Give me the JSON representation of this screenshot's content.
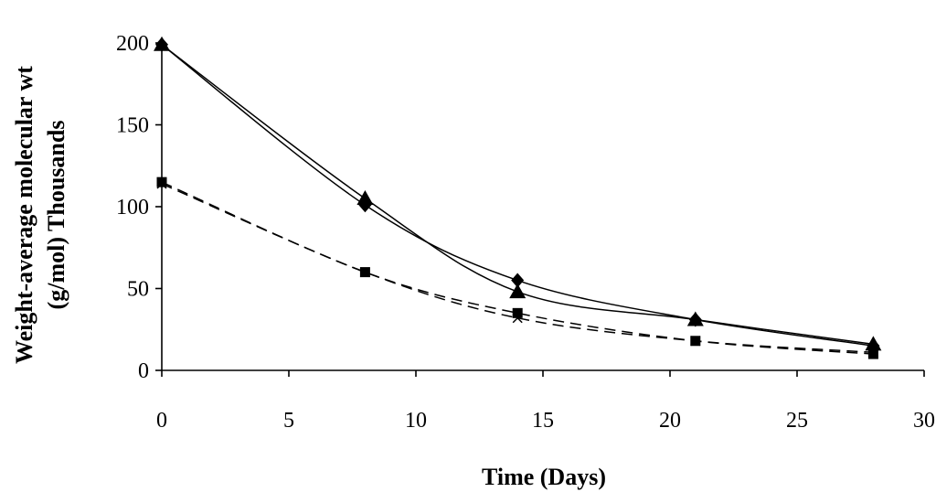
{
  "chart_data": {
    "type": "line",
    "title": "",
    "xlabel": "Time (Days)",
    "ylabel_line1": "Weight-average molecular wt",
    "ylabel_line2": "(g/mol) Thousands",
    "xlim": [
      0,
      30
    ],
    "ylim": [
      0,
      200
    ],
    "xticks": [
      0,
      5,
      10,
      15,
      20,
      25,
      30
    ],
    "yticks": [
      0,
      50,
      100,
      150,
      200
    ],
    "grid": false,
    "legend": "none",
    "series": [
      {
        "name": "diamond",
        "marker": "diamond",
        "line": "solid",
        "x": [
          0,
          8,
          14,
          21,
          28
        ],
        "values": [
          199,
          101,
          55,
          31,
          15
        ]
      },
      {
        "name": "triangle",
        "marker": "triangle",
        "line": "solid",
        "x": [
          0,
          8,
          14,
          21,
          28
        ],
        "values": [
          199,
          105,
          48,
          31,
          16
        ]
      },
      {
        "name": "square",
        "marker": "square",
        "line": "dashed",
        "x": [
          0,
          8,
          14,
          21,
          28
        ],
        "values": [
          115,
          60,
          35,
          18,
          10
        ]
      },
      {
        "name": "cross",
        "marker": "cross",
        "line": "dashed",
        "x": [
          0,
          8,
          14,
          21,
          28
        ],
        "values": [
          114,
          60,
          32,
          18,
          11
        ]
      }
    ]
  }
}
